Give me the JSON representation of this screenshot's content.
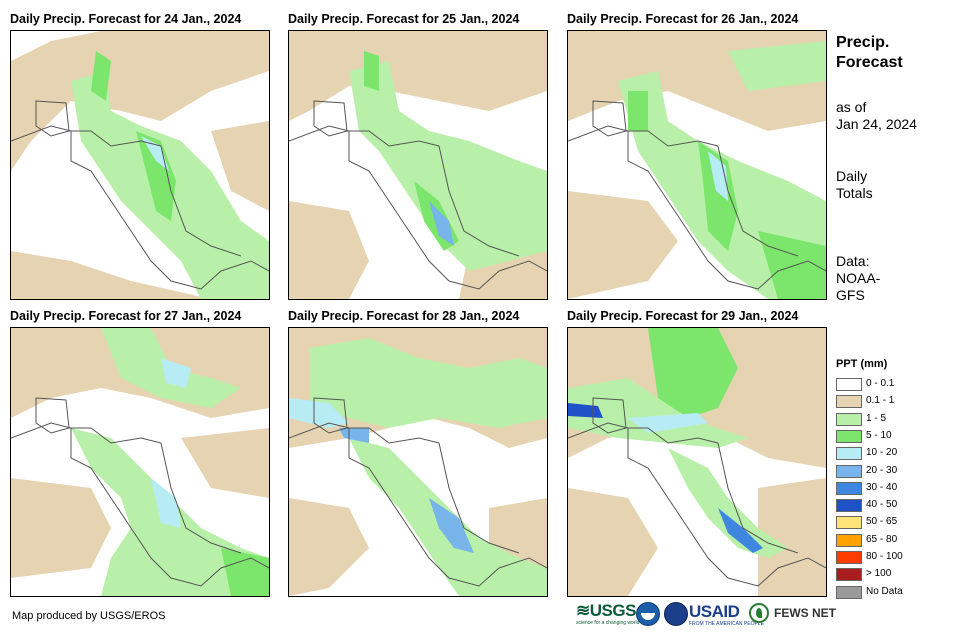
{
  "panels": [
    {
      "title": "Daily Precip. Forecast for 24 Jan., 2024"
    },
    {
      "title": "Daily Precip. Forecast for 25 Jan., 2024"
    },
    {
      "title": "Daily Precip. Forecast for 26 Jan., 2024"
    },
    {
      "title": "Daily Precip. Forecast for 27 Jan., 2024"
    },
    {
      "title": "Daily Precip. Forecast for 28 Jan., 2024"
    },
    {
      "title": "Daily Precip. Forecast for 29 Jan., 2024"
    }
  ],
  "sidebar": {
    "title_line1": "Precip.",
    "title_line2": "Forecast",
    "asof_line1": "as of",
    "asof_line2": "Jan 24, 2024",
    "totals_line1": "Daily",
    "totals_line2": "Totals",
    "data_line1": "Data:",
    "data_line2": "NOAA-",
    "data_line3": "GFS"
  },
  "legend": {
    "title": "PPT (mm)",
    "items": [
      {
        "label": "0 - 0.1",
        "color": "#ffffff"
      },
      {
        "label": "0.1 - 1",
        "color": "#e6d3b1"
      },
      {
        "label": "1 - 5",
        "color": "#b9f0a9"
      },
      {
        "label": "5 - 10",
        "color": "#7be66b"
      },
      {
        "label": "10 - 20",
        "color": "#b7ecf5"
      },
      {
        "label": "20 - 30",
        "color": "#76b4ea"
      },
      {
        "label": "30 - 40",
        "color": "#3f86e0"
      },
      {
        "label": "40 - 50",
        "color": "#1f52c6"
      },
      {
        "label": "50 - 65",
        "color": "#ffe47a"
      },
      {
        "label": "65 - 80",
        "color": "#ffa200"
      },
      {
        "label": "80 - 100",
        "color": "#ff3c00"
      },
      {
        "label": "> 100",
        "color": "#a81d1d"
      },
      {
        "label": "No Data",
        "color": "#9a9a9a"
      }
    ]
  },
  "footer": {
    "credit": "Map produced by USGS/EROS",
    "logo_usgs": "≋USGS",
    "logo_usgs_tag": "science for a changing world",
    "logo_usaid": "USAID",
    "logo_usaid_tag": "FROM THE AMERICAN PEOPLE",
    "logo_fews": "FEWS NET"
  }
}
